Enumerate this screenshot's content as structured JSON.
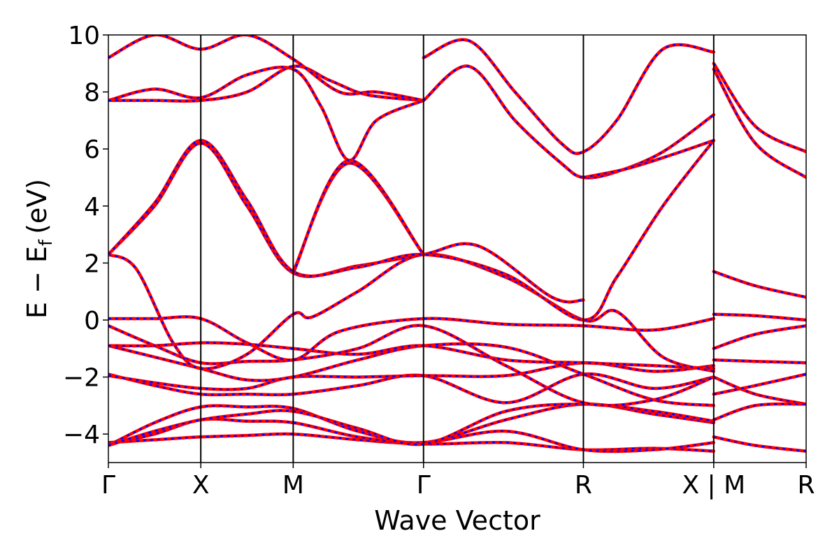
{
  "chart_data": {
    "type": "line",
    "xlabel": "Wave Vector",
    "ylabel_main": "E − E",
    "ylabel_sub": "f",
    "ylabel_unit": "(eV)",
    "ylim": [
      -5,
      10
    ],
    "yticks": [
      {
        "value": -4,
        "label": "−4"
      },
      {
        "value": -2,
        "label": "−2"
      },
      {
        "value": 0,
        "label": "0"
      },
      {
        "value": 2,
        "label": "2"
      },
      {
        "value": 4,
        "label": "4"
      },
      {
        "value": 6,
        "label": "6"
      },
      {
        "value": 8,
        "label": "8"
      },
      {
        "value": 10,
        "label": "10"
      }
    ],
    "xlim": [
      0,
      7.55
    ],
    "kpoints": [
      {
        "pos": 0.0,
        "label": "Γ"
      },
      {
        "pos": 1.0,
        "label": "X"
      },
      {
        "pos": 2.0,
        "label": "M"
      },
      {
        "pos": 3.41,
        "label": "Γ"
      },
      {
        "pos": 5.14,
        "label": "R"
      },
      {
        "pos": 6.55,
        "label": "X | M"
      },
      {
        "pos": 7.55,
        "label": "R"
      }
    ],
    "grid": false,
    "series_colors": {
      "solid": "#ff0000",
      "dashed": "#0000ff"
    },
    "series": [
      {
        "x": [
          0,
          0.5,
          1.0,
          1.5,
          2.0,
          2.7,
          3.41,
          4.3,
          5.14,
          5.9,
          6.55
        ],
        "y": [
          -4.3,
          -4.2,
          -4.1,
          -4.05,
          -4.0,
          -4.2,
          -4.35,
          -4.3,
          -4.55,
          -4.5,
          -4.6
        ]
      },
      {
        "x": [
          0,
          0.5,
          1.0,
          1.5,
          2.0,
          2.7,
          3.41,
          4.3,
          5.14,
          5.9,
          6.55
        ],
        "y": [
          -4.35,
          -4.0,
          -3.5,
          -3.55,
          -3.6,
          -4.1,
          -4.3,
          -3.9,
          -4.55,
          -4.55,
          -4.3
        ]
      },
      {
        "x": [
          0,
          0.5,
          1.0,
          1.5,
          2.0,
          2.7,
          3.41,
          4.3,
          5.14,
          5.9,
          6.55
        ],
        "y": [
          -4.4,
          -3.6,
          -3.05,
          -3.05,
          -3.1,
          -3.9,
          -4.3,
          -3.5,
          -2.95,
          -3.3,
          -3.6
        ]
      },
      {
        "x": [
          0,
          0.5,
          1.0,
          1.5,
          2.0,
          2.7,
          3.41,
          4.3,
          5.14,
          5.9,
          6.55
        ],
        "y": [
          -4.4,
          -3.9,
          -3.5,
          -3.3,
          -3.2,
          -3.8,
          -4.35,
          -3.2,
          -2.95,
          -3.2,
          -3.55
        ]
      },
      {
        "x": [
          0,
          0.5,
          1.0,
          1.5,
          2.0,
          2.7,
          3.41,
          4.3,
          5.14,
          5.9,
          6.55
        ],
        "y": [
          -1.9,
          -2.3,
          -2.6,
          -2.6,
          -2.6,
          -2.3,
          -1.95,
          -2.9,
          -1.9,
          -2.4,
          -2.0
        ]
      },
      {
        "x": [
          0,
          0.5,
          1.0,
          1.5,
          2.0,
          2.7,
          3.41,
          4.3,
          5.14,
          5.9,
          6.55
        ],
        "y": [
          -1.95,
          -2.2,
          -2.4,
          -2.4,
          -2.0,
          -2.0,
          -1.95,
          -1.95,
          -1.5,
          -1.8,
          -1.6
        ]
      },
      {
        "x": [
          0,
          0.5,
          1.0,
          1.5,
          2.0,
          2.7,
          3.41,
          4.3,
          5.14,
          5.9,
          6.55
        ],
        "y": [
          -0.9,
          -1.3,
          -1.7,
          -2.1,
          -2.0,
          -1.4,
          -0.9,
          -0.95,
          -1.9,
          -2.8,
          -3.0
        ]
      },
      {
        "x": [
          0,
          0.5,
          1.0,
          1.5,
          2.0,
          2.7,
          3.41,
          4.3,
          5.14,
          5.9,
          6.55
        ],
        "y": [
          -0.9,
          -0.9,
          -0.8,
          -0.85,
          -1.0,
          -1.2,
          -0.9,
          -1.4,
          -1.5,
          -1.6,
          -1.7
        ]
      },
      {
        "x": [
          0,
          0.5,
          1.0,
          1.5,
          2.0,
          2.7,
          3.41,
          4.3,
          5.14,
          5.9,
          6.55
        ],
        "y": [
          -0.2,
          -0.9,
          -1.5,
          -1.45,
          -1.4,
          -1.0,
          -0.2,
          -1.6,
          -2.9,
          -2.8,
          -2.0
        ]
      },
      {
        "x": [
          0,
          0.5,
          1.0,
          1.5,
          2.0,
          2.5,
          3.41,
          4.3,
          5.14,
          5.9,
          6.55
        ],
        "y": [
          0.05,
          0.05,
          0.05,
          -0.8,
          -1.4,
          -0.4,
          0.05,
          -0.15,
          -0.2,
          -0.35,
          0.05
        ]
      },
      {
        "x": [
          0,
          0.3,
          0.7,
          1.0,
          1.5,
          2.0,
          2.2,
          2.7,
          3.41,
          4.3,
          5.14,
          5.5,
          6.0,
          6.55
        ],
        "y": [
          2.3,
          1.8,
          -0.8,
          -1.7,
          -1.2,
          0.2,
          0.1,
          1.0,
          2.3,
          1.5,
          0.0,
          0.3,
          -1.3,
          -1.8
        ]
      },
      {
        "x": [
          0,
          0.5,
          1.0,
          1.5,
          2.0,
          2.7,
          3.41,
          4.0,
          4.8,
          5.14
        ],
        "y": [
          2.3,
          4.0,
          6.2,
          4.0,
          1.65,
          1.9,
          2.3,
          2.6,
          0.8,
          0.7
        ]
      },
      {
        "x": [
          0,
          0.5,
          1.0,
          1.5,
          2.0,
          2.7,
          3.41,
          4.3,
          5.14,
          5.5,
          6.0,
          6.55
        ],
        "y": [
          2.3,
          4.1,
          6.3,
          4.2,
          1.7,
          1.85,
          2.3,
          1.6,
          0.0,
          1.5,
          4.0,
          6.3
        ]
      },
      {
        "x": [
          2.0,
          2.6,
          3.41
        ],
        "y": [
          1.7,
          5.5,
          2.3
        ]
      },
      {
        "x": [
          2.0,
          2.6,
          3.41
        ],
        "y": [
          1.65,
          5.6,
          2.3
        ]
      },
      {
        "x": [
          0,
          0.5,
          1.0,
          1.5,
          2.0,
          2.3,
          2.6,
          2.9,
          3.41
        ],
        "y": [
          7.7,
          8.1,
          7.8,
          8.6,
          8.8,
          7.5,
          5.6,
          7.0,
          7.7
        ]
      },
      {
        "x": [
          0,
          0.5,
          1.0,
          1.5,
          2.0,
          2.4,
          2.8,
          3.41
        ],
        "y": [
          7.7,
          7.7,
          7.7,
          8.0,
          8.9,
          8.4,
          7.9,
          7.7
        ]
      },
      {
        "x": [
          0,
          0.5,
          1.0,
          1.5,
          2.0,
          2.5,
          2.9,
          3.41
        ],
        "y": [
          9.2,
          10.0,
          9.5,
          10.0,
          9.15,
          8.0,
          8.0,
          7.7
        ]
      },
      {
        "x": [
          3.41,
          3.9,
          4.4,
          4.9,
          5.14,
          5.5,
          6.0,
          6.55
        ],
        "y": [
          7.7,
          8.9,
          7.0,
          5.5,
          5.0,
          5.2,
          5.9,
          7.2
        ]
      },
      {
        "x": [
          3.41,
          3.9,
          4.4,
          4.9,
          5.14,
          5.5,
          6.0,
          6.55
        ],
        "y": [
          9.2,
          9.8,
          8.0,
          6.2,
          5.9,
          7.0,
          9.5,
          9.4
        ]
      },
      {
        "x": [
          5.14,
          5.6,
          6.1,
          6.55
        ],
        "y": [
          5.0,
          5.3,
          5.8,
          6.3
        ]
      },
      {
        "x": [
          6.55,
          7.0,
          7.55
        ],
        "y": [
          9.0,
          6.8,
          5.9
        ]
      },
      {
        "x": [
          6.55,
          7.0,
          7.55
        ],
        "y": [
          8.8,
          6.2,
          5.0
        ]
      },
      {
        "x": [
          6.55,
          7.0,
          7.55
        ],
        "y": [
          1.7,
          1.2,
          0.8
        ]
      },
      {
        "x": [
          6.55,
          7.0,
          7.55
        ],
        "y": [
          0.2,
          0.15,
          0.0
        ]
      },
      {
        "x": [
          6.55,
          7.0,
          7.55
        ],
        "y": [
          -1.0,
          -0.5,
          -0.2
        ]
      },
      {
        "x": [
          6.55,
          7.0,
          7.55
        ],
        "y": [
          -1.4,
          -1.45,
          -1.5
        ]
      },
      {
        "x": [
          6.55,
          7.0,
          7.55
        ],
        "y": [
          -2.0,
          -2.6,
          -2.95
        ]
      },
      {
        "x": [
          6.55,
          7.0,
          7.55
        ],
        "y": [
          -2.6,
          -2.3,
          -1.9
        ]
      },
      {
        "x": [
          6.55,
          7.0,
          7.55
        ],
        "y": [
          -3.5,
          -3.0,
          -2.95
        ]
      },
      {
        "x": [
          6.55,
          7.0,
          7.55
        ],
        "y": [
          -4.1,
          -4.4,
          -4.6
        ]
      }
    ]
  }
}
